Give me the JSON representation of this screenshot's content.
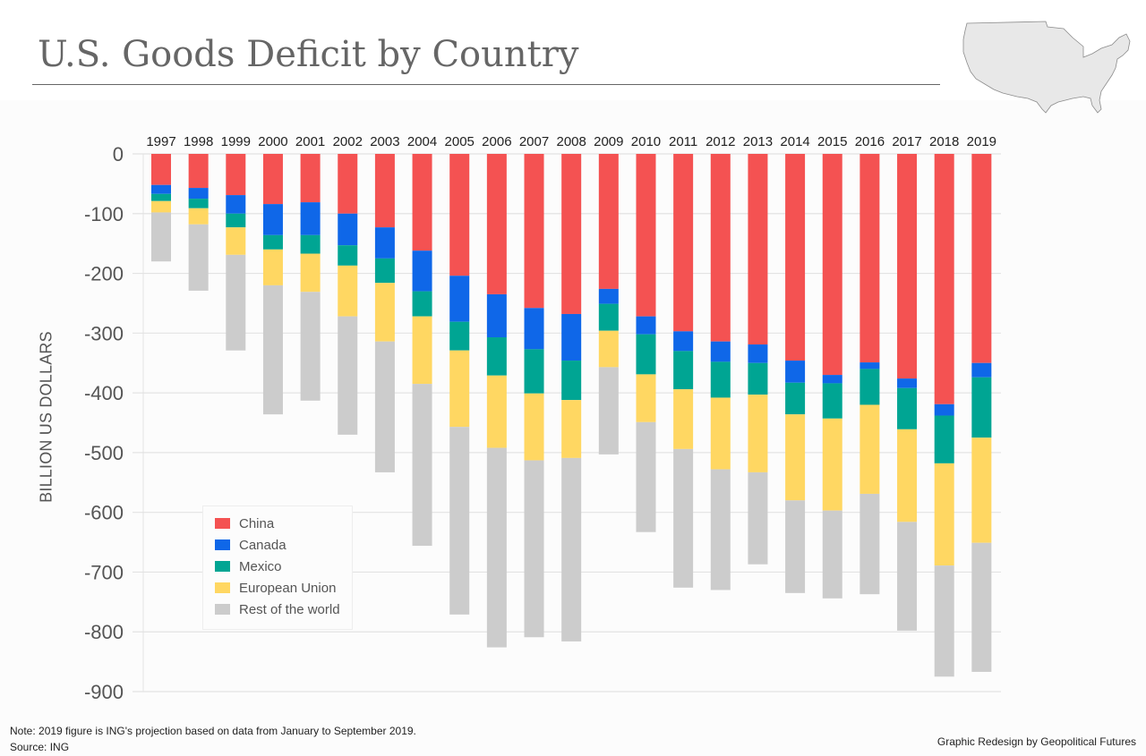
{
  "header": {
    "title": "U.S. Goods Deficit by Country",
    "map_icon": "us-map-icon"
  },
  "footer": {
    "note": "Note: 2019 figure is ING's projection based on data from January to September 2019.",
    "source": "Source: ING",
    "credit": "Graphic Redesign by Geopolitical Futures"
  },
  "chart_data": {
    "type": "bar",
    "stacked": true,
    "title": "U.S. Goods Deficit by Country",
    "xlabel": "",
    "ylabel": "BILLION US DOLLARS",
    "ylim": [
      -900,
      0
    ],
    "yticks": [
      0,
      -100,
      -200,
      -300,
      -400,
      -500,
      -600,
      -700,
      -800,
      -900
    ],
    "ytick_labels": [
      "0",
      "-100",
      "-200",
      "-300",
      "-400",
      "-500",
      "-600",
      "-700",
      "-800",
      "-900"
    ],
    "x_axis_position": "top",
    "grid": true,
    "legend_position": "bottom-left",
    "categories": [
      "1997",
      "1998",
      "1999",
      "2000",
      "2001",
      "2002",
      "2003",
      "2004",
      "2005",
      "2006",
      "2007",
      "2008",
      "2009",
      "2010",
      "2011",
      "2012",
      "2013",
      "2014",
      "2015",
      "2016",
      "2017",
      "2018",
      "2019"
    ],
    "series": [
      {
        "name": "China",
        "color": "#f45252",
        "values": [
          -52,
          -57,
          -69,
          -84,
          -81,
          -100,
          -123,
          -162,
          -204,
          -235,
          -258,
          -268,
          -226,
          -272,
          -297,
          -314,
          -319,
          -346,
          -370,
          -349,
          -376,
          -419,
          -350
        ]
      },
      {
        "name": "Canada",
        "color": "#0f67e8",
        "values": [
          -15,
          -18,
          -31,
          -52,
          -55,
          -53,
          -52,
          -68,
          -77,
          -72,
          -69,
          -78,
          -25,
          -30,
          -33,
          -34,
          -31,
          -37,
          -14,
          -11,
          -16,
          -19,
          -24
        ]
      },
      {
        "name": "Mexico",
        "color": "#00a593",
        "values": [
          -12,
          -16,
          -23,
          -24,
          -31,
          -34,
          -41,
          -42,
          -48,
          -64,
          -74,
          -66,
          -45,
          -67,
          -64,
          -60,
          -53,
          -53,
          -59,
          -60,
          -69,
          -80,
          -101
        ]
      },
      {
        "name": "European Union",
        "color": "#ffd762",
        "values": [
          -19,
          -27,
          -46,
          -60,
          -64,
          -85,
          -98,
          -113,
          -128,
          -121,
          -112,
          -97,
          -61,
          -80,
          -100,
          -120,
          -130,
          -144,
          -154,
          -149,
          -155,
          -171,
          -176
        ]
      },
      {
        "name": "Rest of the world",
        "color": "#cccccc",
        "values": [
          -82,
          -111,
          -160,
          -216,
          -182,
          -198,
          -219,
          -271,
          -314,
          -334,
          -296,
          -307,
          -146,
          -184,
          -232,
          -202,
          -154,
          -155,
          -147,
          -168,
          -182,
          -186,
          -216
        ]
      }
    ]
  }
}
